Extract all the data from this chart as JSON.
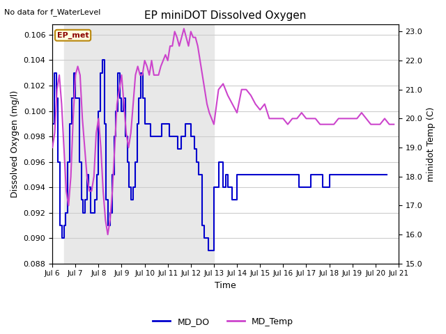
{
  "title": "EP miniDOT Dissolved Oxygen",
  "no_data_text": "No data for f_WaterLevel",
  "ep_met_label": "EP_met",
  "xlabel": "Time",
  "ylabel_left": "Dissolved Oxygen (mg/l)",
  "ylabel_right": "minidot Temp (C)",
  "ylim_left": [
    0.088,
    0.1068
  ],
  "ylim_right": [
    15.0,
    23.24
  ],
  "yticks_left": [
    0.088,
    0.09,
    0.092,
    0.094,
    0.096,
    0.098,
    0.1,
    0.102,
    0.104,
    0.106
  ],
  "yticks_right": [
    15.0,
    16.0,
    17.0,
    18.0,
    19.0,
    20.0,
    21.0,
    22.0,
    23.0
  ],
  "xtick_labels": [
    "Jul 6",
    "Jul 7",
    "Jul 8",
    "Jul 9",
    "Jul 10",
    "Jul 11",
    "Jul 12",
    "Jul 13",
    "Jul 14",
    "Jul 15",
    "Jul 16",
    "Jul 17",
    "Jul 18",
    "Jul 19",
    "Jul 20",
    "Jul 21"
  ],
  "legend_do_label": "MD_DO",
  "legend_temp_label": "MD_Temp",
  "do_color": "#0000CD",
  "temp_color": "#CC44CC",
  "shaded_region_color": "#E8E8E8",
  "shaded_xstart": 6.5,
  "shaded_xend": 13.0,
  "grid_color": "#CCCCCC",
  "do_x": [
    6.0,
    6.08,
    6.17,
    6.25,
    6.33,
    6.42,
    6.5,
    6.58,
    6.67,
    6.75,
    6.83,
    6.92,
    7.0,
    7.08,
    7.17,
    7.25,
    7.33,
    7.42,
    7.5,
    7.58,
    7.67,
    7.75,
    7.83,
    7.92,
    8.0,
    8.08,
    8.17,
    8.25,
    8.33,
    8.42,
    8.5,
    8.58,
    8.67,
    8.75,
    8.83,
    8.92,
    9.0,
    9.08,
    9.17,
    9.25,
    9.33,
    9.42,
    9.5,
    9.58,
    9.67,
    9.75,
    9.83,
    9.92,
    10.0,
    10.08,
    10.17,
    10.25,
    10.33,
    10.42,
    10.5,
    10.58,
    10.67,
    10.75,
    10.83,
    10.92,
    11.0,
    11.08,
    11.17,
    11.25,
    11.33,
    11.42,
    11.5,
    11.58,
    11.67,
    11.75,
    11.83,
    11.92,
    12.0,
    12.08,
    12.17,
    12.25,
    12.33,
    12.42,
    12.5,
    12.58,
    12.67,
    12.75,
    13.0,
    13.1,
    13.2,
    13.4,
    13.5,
    13.6,
    13.7,
    13.8,
    13.9,
    14.0,
    14.1,
    14.5,
    14.8,
    15.0,
    15.2,
    15.5,
    15.8,
    16.0,
    16.2,
    16.5,
    16.7,
    17.0,
    17.2,
    17.5,
    17.7,
    17.8,
    18.0,
    18.5,
    19.0,
    19.5,
    20.0,
    20.5
  ],
  "do_y": [
    0.099,
    0.103,
    0.101,
    0.096,
    0.091,
    0.09,
    0.091,
    0.092,
    0.096,
    0.099,
    0.101,
    0.103,
    0.101,
    0.101,
    0.096,
    0.093,
    0.092,
    0.093,
    0.095,
    0.094,
    0.092,
    0.092,
    0.093,
    0.095,
    0.1,
    0.103,
    0.104,
    0.099,
    0.093,
    0.091,
    0.092,
    0.095,
    0.098,
    0.1,
    0.103,
    0.101,
    0.1,
    0.101,
    0.098,
    0.096,
    0.094,
    0.093,
    0.094,
    0.096,
    0.099,
    0.101,
    0.103,
    0.101,
    0.099,
    0.099,
    0.099,
    0.098,
    0.098,
    0.098,
    0.098,
    0.098,
    0.098,
    0.099,
    0.099,
    0.099,
    0.099,
    0.098,
    0.098,
    0.098,
    0.098,
    0.097,
    0.097,
    0.098,
    0.098,
    0.099,
    0.099,
    0.099,
    0.098,
    0.098,
    0.097,
    0.096,
    0.095,
    0.095,
    0.091,
    0.09,
    0.09,
    0.089,
    0.094,
    0.094,
    0.096,
    0.094,
    0.095,
    0.094,
    0.094,
    0.093,
    0.093,
    0.095,
    0.095,
    0.095,
    0.095,
    0.095,
    0.095,
    0.095,
    0.095,
    0.095,
    0.095,
    0.095,
    0.094,
    0.094,
    0.095,
    0.095,
    0.094,
    0.094,
    0.095,
    0.095,
    0.095,
    0.095,
    0.095,
    0.095
  ],
  "temp_x": [
    6.0,
    6.1,
    6.2,
    6.3,
    6.4,
    6.5,
    6.6,
    6.7,
    6.8,
    6.9,
    7.0,
    7.1,
    7.2,
    7.3,
    7.4,
    7.5,
    7.6,
    7.7,
    7.8,
    7.9,
    8.0,
    8.1,
    8.2,
    8.3,
    8.4,
    8.5,
    8.6,
    8.7,
    8.8,
    8.9,
    9.0,
    9.1,
    9.2,
    9.3,
    9.4,
    9.5,
    9.6,
    9.7,
    9.8,
    9.9,
    10.0,
    10.1,
    10.2,
    10.3,
    10.4,
    10.5,
    10.6,
    10.7,
    10.8,
    10.9,
    11.0,
    11.1,
    11.2,
    11.3,
    11.4,
    11.5,
    11.6,
    11.7,
    11.8,
    11.9,
    12.0,
    12.1,
    12.2,
    12.3,
    12.4,
    12.5,
    12.6,
    12.7,
    12.8,
    12.9,
    13.0,
    13.2,
    13.4,
    13.6,
    13.8,
    14.0,
    14.2,
    14.4,
    14.6,
    14.8,
    15.0,
    15.2,
    15.4,
    15.6,
    15.8,
    16.0,
    16.2,
    16.4,
    16.6,
    16.8,
    17.0,
    17.2,
    17.4,
    17.6,
    17.8,
    18.0,
    18.2,
    18.4,
    18.6,
    18.8,
    19.0,
    19.2,
    19.4,
    19.6,
    19.8,
    20.0,
    20.2,
    20.4,
    20.6,
    20.8
  ],
  "temp_y": [
    19.0,
    19.5,
    21.0,
    21.5,
    20.5,
    19.0,
    17.5,
    17.0,
    18.0,
    20.0,
    21.5,
    21.8,
    21.5,
    20.0,
    19.0,
    18.0,
    17.5,
    17.5,
    18.0,
    19.5,
    20.0,
    19.0,
    17.5,
    16.5,
    16.0,
    16.5,
    17.5,
    19.0,
    20.5,
    21.0,
    21.5,
    20.5,
    19.5,
    19.0,
    19.5,
    20.5,
    21.5,
    21.8,
    21.5,
    21.5,
    22.0,
    21.8,
    21.5,
    22.0,
    21.5,
    21.5,
    21.5,
    21.8,
    22.0,
    22.2,
    22.0,
    22.5,
    22.5,
    23.0,
    22.8,
    22.5,
    22.8,
    23.1,
    22.8,
    22.5,
    23.0,
    22.8,
    22.8,
    22.5,
    22.0,
    21.5,
    21.0,
    20.5,
    20.2,
    20.0,
    19.8,
    21.0,
    21.2,
    20.8,
    20.5,
    20.2,
    21.0,
    21.0,
    20.8,
    20.5,
    20.3,
    20.5,
    20.0,
    20.0,
    20.0,
    20.0,
    19.8,
    20.0,
    20.0,
    20.2,
    20.0,
    20.0,
    20.0,
    19.8,
    19.8,
    19.8,
    19.8,
    20.0,
    20.0,
    20.0,
    20.0,
    20.0,
    20.2,
    20.0,
    19.8,
    19.8,
    19.8,
    20.0,
    19.8,
    19.8
  ],
  "xlim": [
    6.0,
    21.0
  ],
  "xtick_positions": [
    6,
    7,
    8,
    9,
    10,
    11,
    12,
    13,
    14,
    15,
    16,
    17,
    18,
    19,
    20,
    21
  ]
}
